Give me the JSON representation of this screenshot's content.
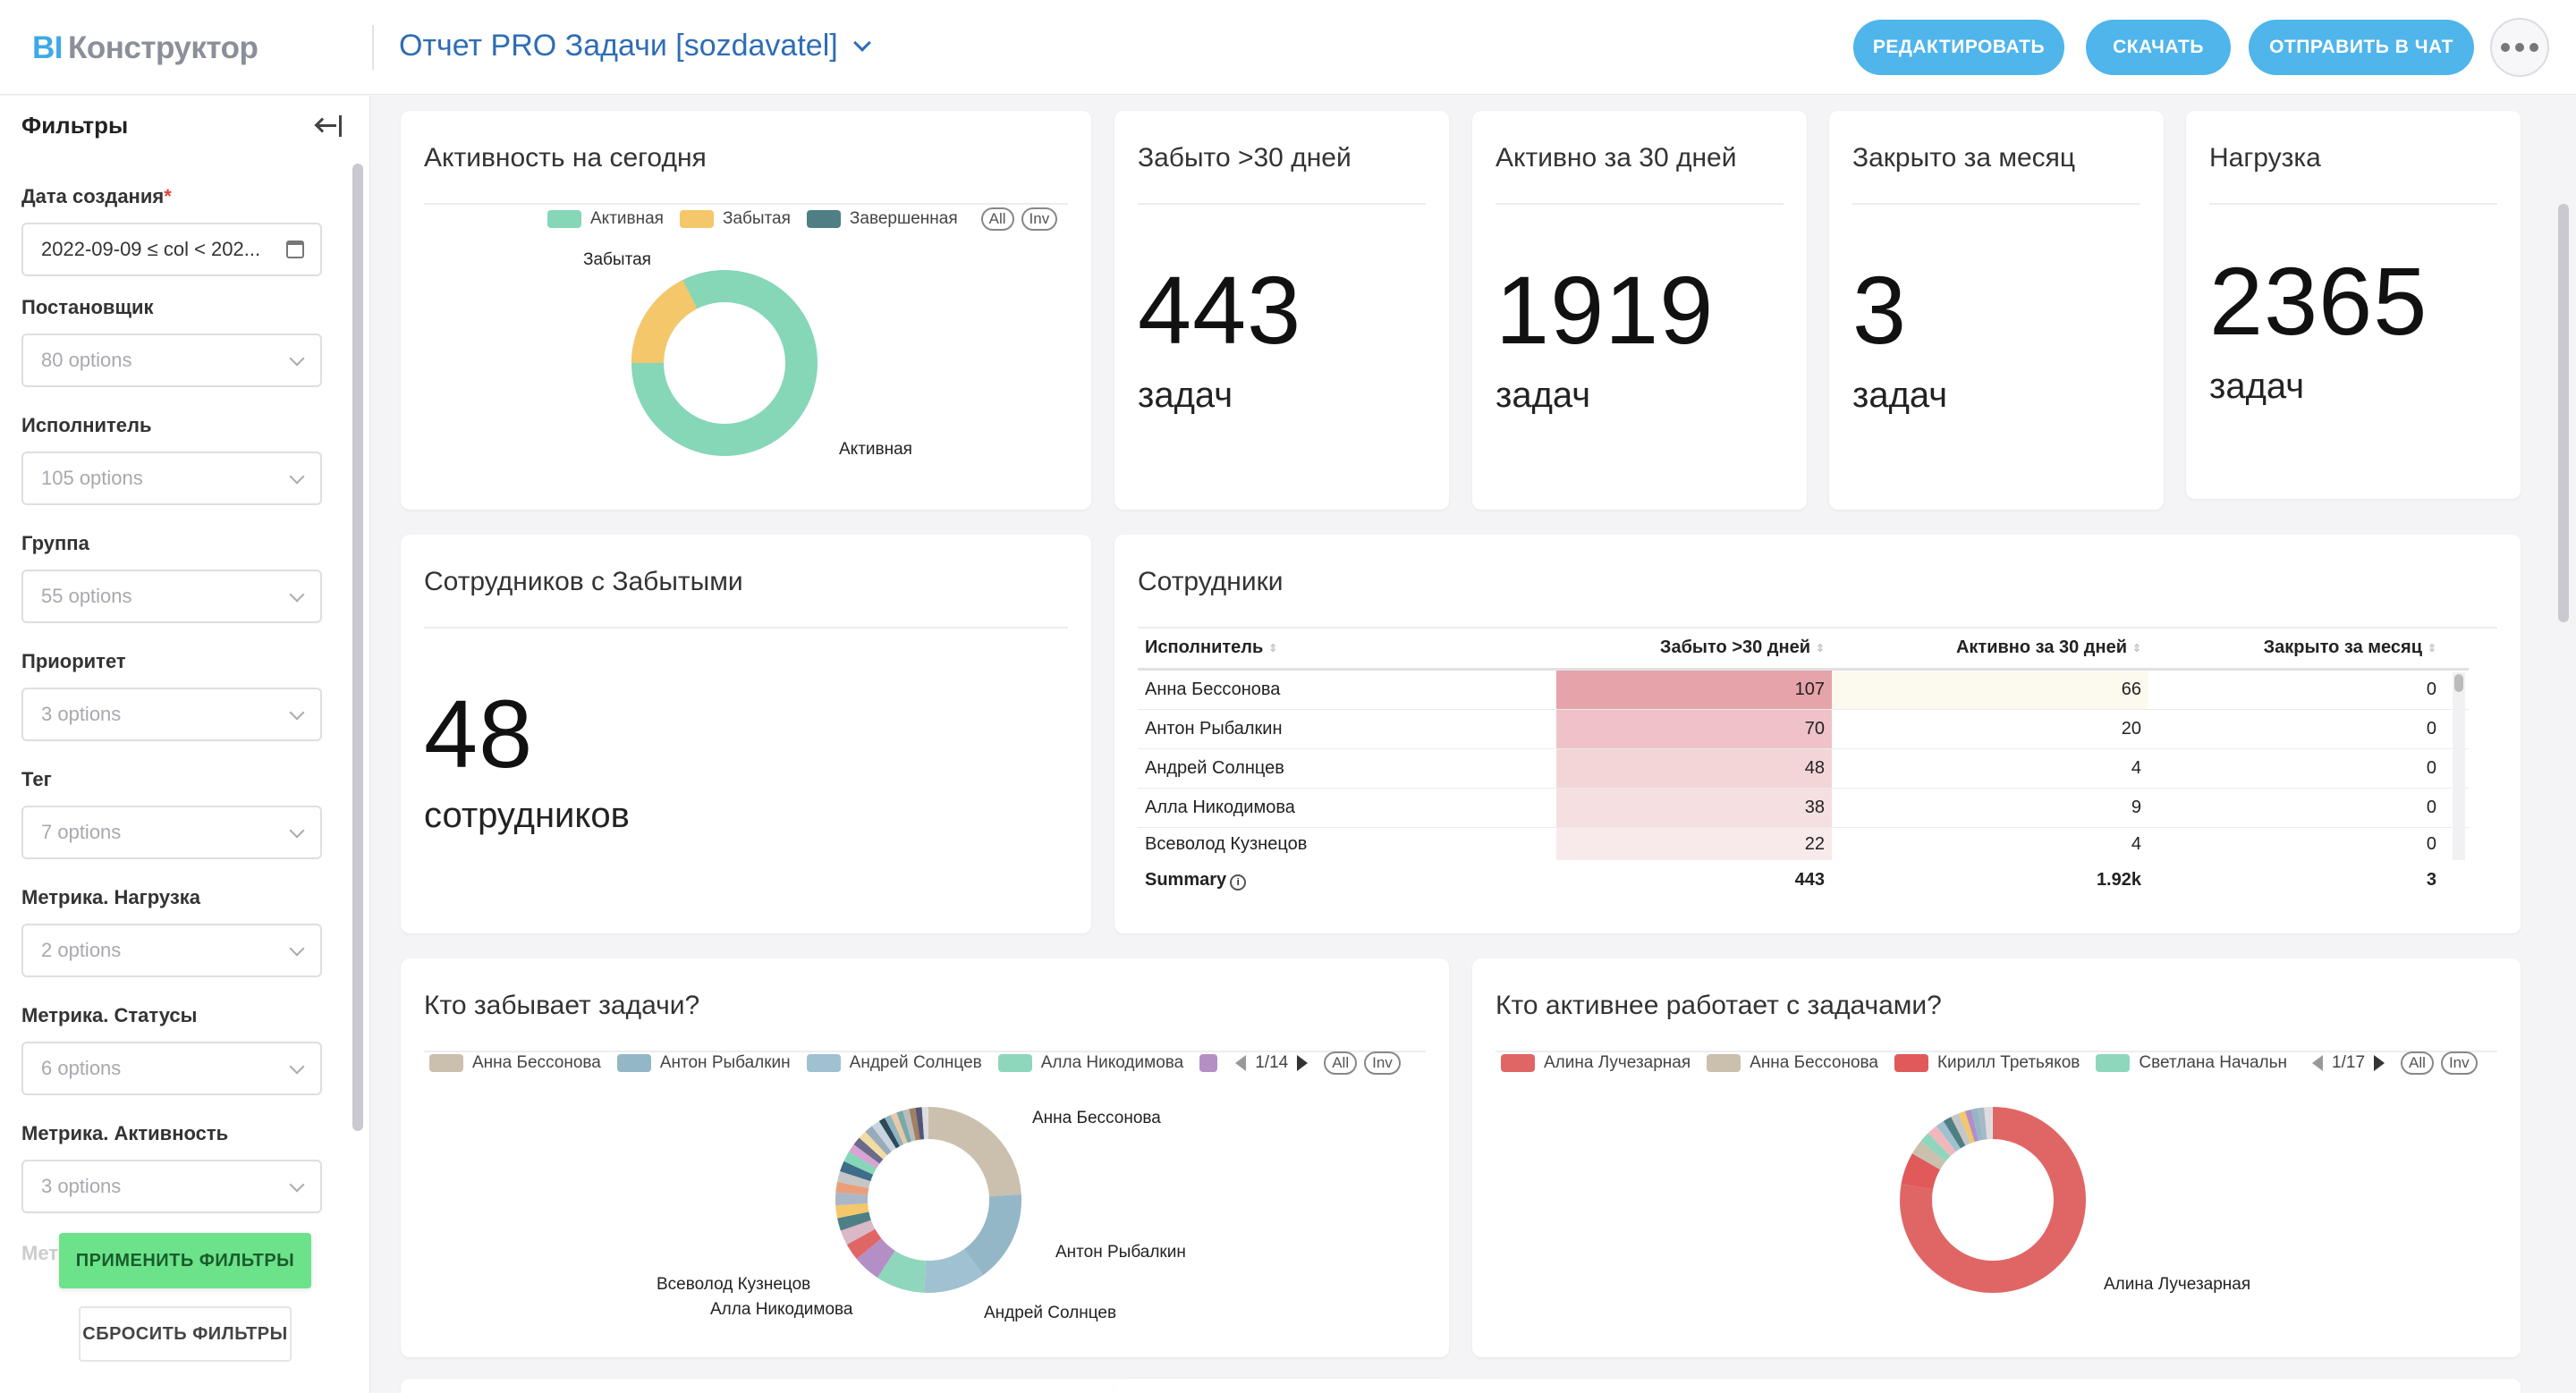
{
  "header": {
    "logo_prefix": "BI",
    "logo_text": "Конструктор",
    "report_title": "Отчет PRO Задачи [sozdavatel]",
    "buttons": {
      "edit": "РЕДАКТИРОВАТЬ",
      "download": "СКАЧАТЬ",
      "send": "ОТПРАВИТЬ В ЧАТ"
    }
  },
  "sidebar": {
    "title": "Фильтры",
    "filters": [
      {
        "label": "Дата создания",
        "value": "2022-09-09 ≤ col < 202...",
        "required": "*"
      },
      {
        "label": "Постановщик",
        "value": "80 options"
      },
      {
        "label": "Исполнитель",
        "value": "105 options"
      },
      {
        "label": "Группа",
        "value": "55 options"
      },
      {
        "label": "Приоритет",
        "value": "3 options"
      },
      {
        "label": "Тег",
        "value": "7 options"
      },
      {
        "label": "Метрика. Нагрузка",
        "value": "2 options"
      },
      {
        "label": "Метрика. Статусы",
        "value": "6 options"
      },
      {
        "label": "Метрика. Активность",
        "value": "3 options"
      }
    ],
    "ghost_label": "Метр",
    "apply": "ПРИМЕНИТЬ ФИЛЬТРЫ",
    "reset": "СБРОСИТЬ ФИЛЬТРЫ"
  },
  "kpis": {
    "forgot": {
      "title": "Забыто >30 дней",
      "value": "443",
      "unit": "задач"
    },
    "active": {
      "title": "Активно за 30 дней",
      "value": "1919",
      "unit": "задач"
    },
    "closed": {
      "title": "Закрыто за месяц",
      "value": "3",
      "unit": "задач"
    },
    "load": {
      "title": "Нагрузка",
      "value": "2365",
      "unit": "задач"
    },
    "employees_forgot": {
      "title": "Сотрудников с Забытыми",
      "value": "48",
      "unit": "сотрудников"
    }
  },
  "activity": {
    "title": "Активность на сегодня",
    "legend": [
      {
        "name": "Активная",
        "color": "#86d6b8"
      },
      {
        "name": "Забытая",
        "color": "#f4c76a"
      },
      {
        "name": "Завершенная",
        "color": "#4f7f85"
      }
    ],
    "all": "All",
    "inv": "Inv",
    "label_active": "Активная",
    "label_forgot": "Забытая"
  },
  "table": {
    "title": "Сотрудники",
    "columns": [
      "Исполнитель",
      "Забыто >30 дней",
      "Активно за 30 дней",
      "Закрыто за месяц"
    ],
    "rows": [
      {
        "name": "Анна Бессонова",
        "forgot": "107",
        "active": "66",
        "closed": "0"
      },
      {
        "name": "Антон Рыбалкин",
        "forgot": "70",
        "active": "20",
        "closed": "0"
      },
      {
        "name": "Андрей Солнцев",
        "forgot": "48",
        "active": "4",
        "closed": "0"
      },
      {
        "name": "Алла Никодимова",
        "forgot": "38",
        "active": "9",
        "closed": "0"
      },
      {
        "name": "Всеволод Кузнецов",
        "forgot": "22",
        "active": "4",
        "closed": "0"
      }
    ],
    "summary": {
      "label": "Summary",
      "forgot": "443",
      "active": "1.92k",
      "closed": "3"
    }
  },
  "who_forgets": {
    "title": "Кто забывает задачи?",
    "legend": [
      {
        "name": "Анна Бессонова",
        "color": "#cbbfae"
      },
      {
        "name": "Антон Рыбалкин",
        "color": "#93b7c6"
      },
      {
        "name": "Андрей Солнцев",
        "color": "#9fc1d0"
      },
      {
        "name": "Алла Никодимова",
        "color": "#8fd7bc"
      }
    ],
    "extra_swatch_color": "#b48fc6",
    "pager": "1/14",
    "all": "All",
    "inv": "Inv",
    "labels": {
      "a": "Анна Бессонова",
      "b": "Антон Рыбалкин",
      "c": "Андрей Солнцев",
      "d": "Всеволод Кузнецов",
      "e": "Алла Никодимова"
    }
  },
  "who_active": {
    "title": "Кто активнее работает с задачами?",
    "legend": [
      {
        "name": "Алина Лучезарная",
        "color": "#e06666"
      },
      {
        "name": "Анна Бессонова",
        "color": "#cbbfae"
      },
      {
        "name": "Кирилл Третьяков",
        "color": "#e05a5a"
      },
      {
        "name": "Светлана Начальн",
        "color": "#8fd7bc"
      }
    ],
    "pager": "1/17",
    "all": "All",
    "inv": "Inv",
    "label_main": "Алина Лучезарная"
  }
}
